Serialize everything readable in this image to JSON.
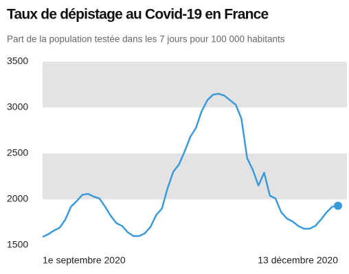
{
  "chart_data": {
    "type": "line",
    "title": "Taux de dépistage au Covid-19 en France",
    "subtitle": "Part de la population testée dans les 7 jours pour 100 000 habitants",
    "categories": [
      "1e septembre 2020",
      null,
      null,
      null,
      null,
      null,
      null,
      null,
      null,
      null,
      null,
      null,
      null,
      null,
      null,
      null,
      null,
      null,
      null,
      null,
      null,
      null,
      null,
      null,
      null,
      null,
      null,
      null,
      null,
      null,
      null,
      null,
      null,
      null,
      null,
      null,
      null,
      null,
      null,
      null,
      null,
      null,
      null,
      null,
      null,
      null,
      null,
      null,
      null,
      null,
      null,
      null,
      "13 décembre 2020"
    ],
    "series": [
      {
        "name": "Taux de dépistage",
        "color": "#3a9ad9",
        "values": [
          1590,
          1620,
          1660,
          1690,
          1780,
          1920,
          1980,
          2050,
          2060,
          2030,
          2010,
          1920,
          1820,
          1740,
          1710,
          1640,
          1600,
          1600,
          1630,
          1700,
          1830,
          1900,
          2120,
          2300,
          2380,
          2520,
          2680,
          2780,
          2960,
          3080,
          3140,
          3150,
          3130,
          3080,
          3030,
          2880,
          2450,
          2320,
          2150,
          2290,
          2040,
          2010,
          1860,
          1790,
          1760,
          1710,
          1680,
          1680,
          1710,
          1780,
          1860,
          1920,
          1930
        ]
      }
    ],
    "ylim": [
      1500,
      3500
    ],
    "yticks": [
      1500,
      2000,
      2500,
      3000,
      3500
    ],
    "grid": true,
    "band_color": "#e3e3e3",
    "end_marker": true
  }
}
